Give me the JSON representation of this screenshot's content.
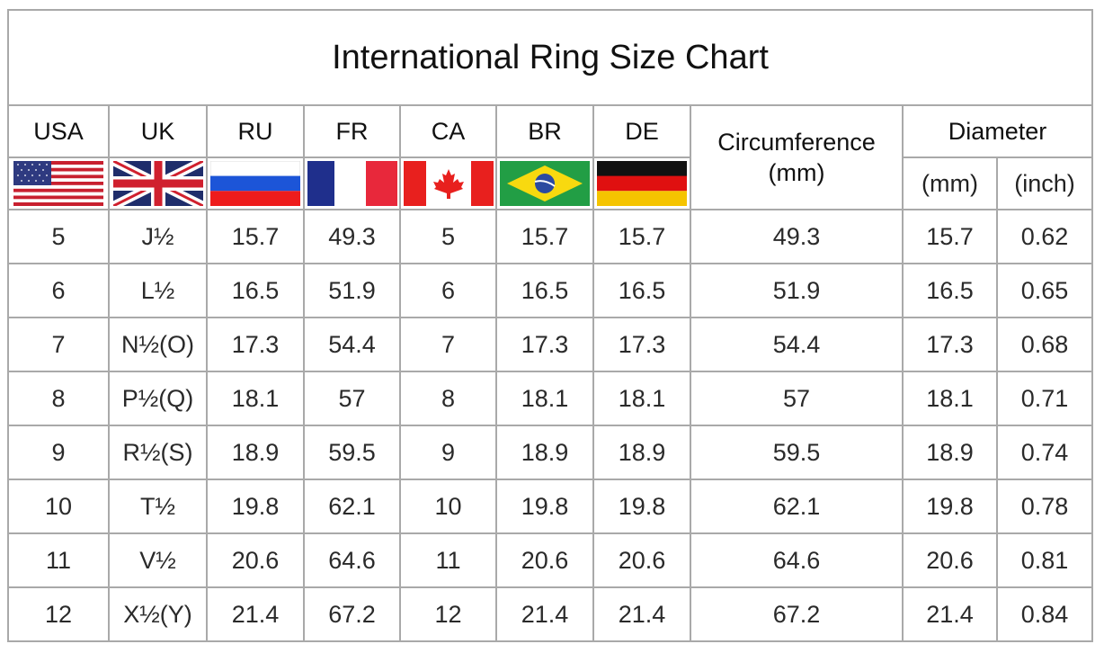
{
  "title": "International Ring Size Chart",
  "headers": {
    "usa": "USA",
    "uk": "UK",
    "ru": "RU",
    "fr": "FR",
    "ca": "CA",
    "br": "BR",
    "de": "DE",
    "circumference": "Circumference",
    "circumference_unit": "(mm)",
    "diameter": "Diameter",
    "diameter_mm": "(mm)",
    "diameter_inch": "(inch)"
  },
  "flags": [
    "us-flag-icon",
    "uk-flag-icon",
    "russia-flag-icon",
    "france-flag-icon",
    "canada-flag-icon",
    "brazil-flag-icon",
    "germany-flag-icon"
  ],
  "rows": [
    [
      "5",
      "J½",
      "15.7",
      "49.3",
      "5",
      "15.7",
      "15.7",
      "49.3",
      "15.7",
      "0.62"
    ],
    [
      "6",
      "L½",
      "16.5",
      "51.9",
      "6",
      "16.5",
      "16.5",
      "51.9",
      "16.5",
      "0.65"
    ],
    [
      "7",
      "N½(O)",
      "17.3",
      "54.4",
      "7",
      "17.3",
      "17.3",
      "54.4",
      "17.3",
      "0.68"
    ],
    [
      "8",
      "P½(Q)",
      "18.1",
      "57",
      "8",
      "18.1",
      "18.1",
      "57",
      "18.1",
      "0.71"
    ],
    [
      "9",
      "R½(S)",
      "18.9",
      "59.5",
      "9",
      "18.9",
      "18.9",
      "59.5",
      "18.9",
      "0.74"
    ],
    [
      "10",
      "T½",
      "19.8",
      "62.1",
      "10",
      "19.8",
      "19.8",
      "62.1",
      "19.8",
      "0.78"
    ],
    [
      "11",
      "V½",
      "20.6",
      "64.6",
      "11",
      "20.6",
      "20.6",
      "64.6",
      "20.6",
      "0.81"
    ],
    [
      "12",
      "X½(Y)",
      "21.4",
      "67.2",
      "12",
      "21.4",
      "21.4",
      "67.2",
      "21.4",
      "0.84"
    ]
  ]
}
